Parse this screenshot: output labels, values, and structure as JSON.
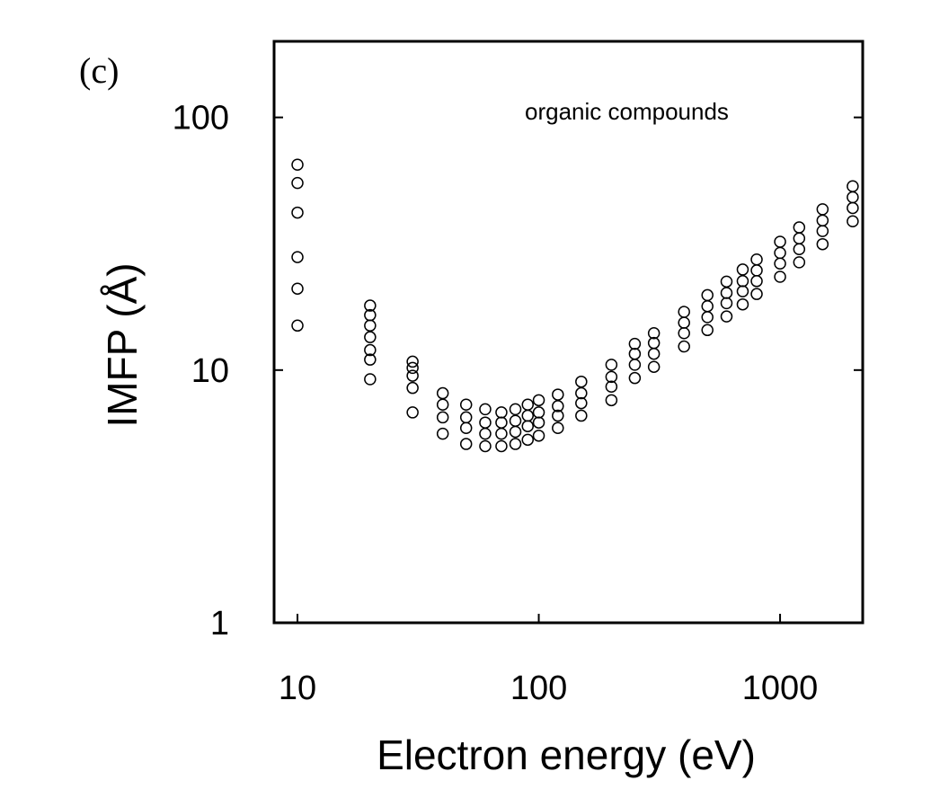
{
  "panel_label": "(c)",
  "chart_data": {
    "type": "scatter",
    "title": "",
    "xlabel": "Electron energy (eV)",
    "ylabel": "IMFP (Å)",
    "x_scale": "log",
    "y_scale": "log",
    "xlim": [
      8,
      2200
    ],
    "ylim": [
      1,
      200
    ],
    "x_ticks": [
      {
        "value": 10,
        "label": "10"
      },
      {
        "value": 100,
        "label": "100"
      },
      {
        "value": 1000,
        "label": "1000"
      }
    ],
    "y_ticks": [
      {
        "value": 1,
        "label": "1"
      },
      {
        "value": 10,
        "label": "10"
      },
      {
        "value": 100,
        "label": "100"
      }
    ],
    "annotations": [
      {
        "text": "organic compounds",
        "placement": "top-right"
      }
    ],
    "grid": false,
    "marker": "open-circle",
    "series": [
      {
        "values": [
          [
            10,
            15
          ],
          [
            10,
            21
          ],
          [
            10,
            28
          ],
          [
            10,
            42
          ],
          [
            10,
            55
          ],
          [
            10,
            65
          ],
          [
            20,
            9.2
          ],
          [
            20,
            11
          ],
          [
            20,
            12
          ],
          [
            20,
            13.5
          ],
          [
            20,
            15
          ],
          [
            20,
            16.5
          ],
          [
            20,
            18
          ],
          [
            30,
            6.8
          ],
          [
            30,
            8.5
          ],
          [
            30,
            9.5
          ],
          [
            30,
            10.2
          ],
          [
            30,
            10.8
          ],
          [
            40,
            5.6
          ],
          [
            40,
            6.5
          ],
          [
            40,
            7.3
          ],
          [
            40,
            8.1
          ],
          [
            50,
            5.1
          ],
          [
            50,
            5.9
          ],
          [
            50,
            6.5
          ],
          [
            50,
            7.3
          ],
          [
            60,
            5.0
          ],
          [
            60,
            5.6
          ],
          [
            60,
            6.2
          ],
          [
            60,
            7.0
          ],
          [
            70,
            5.0
          ],
          [
            70,
            5.6
          ],
          [
            70,
            6.2
          ],
          [
            70,
            6.8
          ],
          [
            80,
            5.1
          ],
          [
            80,
            5.7
          ],
          [
            80,
            6.3
          ],
          [
            80,
            7.0
          ],
          [
            90,
            5.3
          ],
          [
            90,
            6.0
          ],
          [
            90,
            6.6
          ],
          [
            90,
            7.3
          ],
          [
            100,
            5.5
          ],
          [
            100,
            6.2
          ],
          [
            100,
            6.8
          ],
          [
            100,
            7.6
          ],
          [
            120,
            5.9
          ],
          [
            120,
            6.6
          ],
          [
            120,
            7.2
          ],
          [
            120,
            8.0
          ],
          [
            150,
            6.6
          ],
          [
            150,
            7.4
          ],
          [
            150,
            8.1
          ],
          [
            150,
            9.0
          ],
          [
            200,
            7.6
          ],
          [
            200,
            8.6
          ],
          [
            200,
            9.4
          ],
          [
            200,
            10.5
          ],
          [
            250,
            9.3
          ],
          [
            250,
            10.5
          ],
          [
            250,
            11.6
          ],
          [
            250,
            12.7
          ],
          [
            300,
            10.3
          ],
          [
            300,
            11.6
          ],
          [
            300,
            12.8
          ],
          [
            300,
            14.0
          ],
          [
            400,
            12.4
          ],
          [
            400,
            14.0
          ],
          [
            400,
            15.4
          ],
          [
            400,
            17.0
          ],
          [
            500,
            14.4
          ],
          [
            500,
            16.2
          ],
          [
            500,
            17.9
          ],
          [
            500,
            19.8
          ],
          [
            600,
            16.3
          ],
          [
            600,
            18.4
          ],
          [
            600,
            20.2
          ],
          [
            600,
            22.4
          ],
          [
            700,
            18.2
          ],
          [
            700,
            20.5
          ],
          [
            700,
            22.5
          ],
          [
            700,
            25.0
          ],
          [
            800,
            20.0
          ],
          [
            800,
            22.5
          ],
          [
            800,
            24.8
          ],
          [
            800,
            27.4
          ],
          [
            1000,
            23.4
          ],
          [
            1000,
            26.4
          ],
          [
            1000,
            29.1
          ],
          [
            1000,
            32.2
          ],
          [
            1200,
            26.7
          ],
          [
            1200,
            30.1
          ],
          [
            1200,
            33.2
          ],
          [
            1200,
            36.7
          ],
          [
            1500,
            31.5
          ],
          [
            1500,
            35.5
          ],
          [
            1500,
            39.1
          ],
          [
            1500,
            43.3
          ],
          [
            2000,
            38.8
          ],
          [
            2000,
            43.8
          ],
          [
            2000,
            48.3
          ],
          [
            2000,
            53.4
          ]
        ]
      }
    ]
  }
}
